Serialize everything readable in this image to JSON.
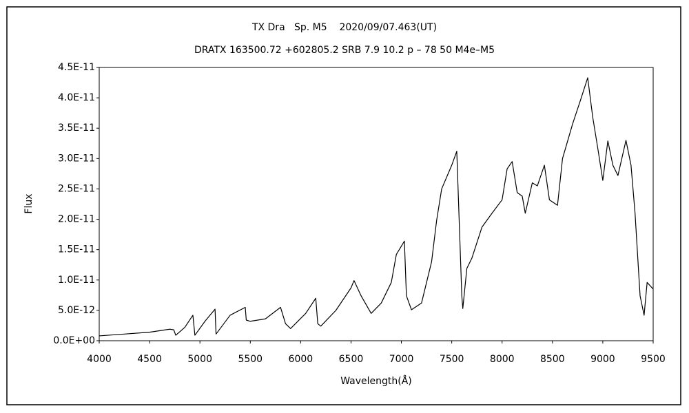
{
  "chart_data": {
    "type": "line",
    "title": "TX Dra   Sp. M5    2020/09/07.463(UT)",
    "subtitle": "DRATX 163500.72 +602805.2 SRB 7.9 10.2 p – 78 50 M4e–M5",
    "x_label": "Wavelength(Å)",
    "y_label": "Flux",
    "color": "#000000",
    "grid": false,
    "x": [
      4000,
      4250,
      4500,
      4700,
      4740,
      4760,
      4850,
      4930,
      4950,
      5050,
      5150,
      5160,
      5300,
      5450,
      5460,
      5500,
      5650,
      5800,
      5850,
      5900,
      6050,
      6150,
      6170,
      6200,
      6350,
      6500,
      6530,
      6600,
      6700,
      6800,
      6900,
      6950,
      7030,
      7050,
      7100,
      7200,
      7300,
      7350,
      7400,
      7500,
      7550,
      7600,
      7610,
      7650,
      7700,
      7800,
      7900,
      8000,
      8050,
      8100,
      8150,
      8200,
      8230,
      8300,
      8350,
      8420,
      8470,
      8550,
      8600,
      8700,
      8780,
      8850,
      8900,
      8950,
      9000,
      9050,
      9100,
      9150,
      9230,
      9280,
      9320,
      9370,
      9410,
      9440,
      9500
    ],
    "values": [
      8e-13,
      1.1e-12,
      1.4e-12,
      1.9e-12,
      1.8e-12,
      9e-13,
      2.2e-12,
      4.2e-12,
      9e-13,
      3.2e-12,
      5.2e-12,
      1.1e-12,
      4.2e-12,
      5.5e-12,
      3.4e-12,
      3.2e-12,
      3.6e-12,
      5.5e-12,
      2.8e-12,
      2e-12,
      4.5e-12,
      7e-12,
      2.8e-12,
      2.4e-12,
      5e-12,
      8.7e-12,
      9.9e-12,
      7.4e-12,
      4.5e-12,
      6.2e-12,
      9.6e-12,
      1.42e-11,
      1.64e-11,
      7.4e-12,
      5.1e-12,
      6.2e-12,
      1.3e-11,
      1.98e-11,
      2.5e-11,
      2.89e-11,
      3.12e-11,
      7.4e-12,
      5.3e-12,
      1.19e-11,
      1.36e-11,
      1.87e-11,
      2.1e-11,
      2.32e-11,
      2.83e-11,
      2.95e-11,
      2.44e-11,
      2.38e-11,
      2.1e-11,
      2.6e-11,
      2.55e-11,
      2.89e-11,
      2.32e-11,
      2.23e-11,
      3e-11,
      3.57e-11,
      3.97e-11,
      4.33e-11,
      3.68e-11,
      3.17e-11,
      2.64e-11,
      3.29e-11,
      2.89e-11,
      2.72e-11,
      3.3e-11,
      2.89e-11,
      2.1e-11,
      7.4e-12,
      4.2e-12,
      9.6e-12,
      8.5e-12
    ],
    "xlim": [
      4000,
      9500
    ],
    "xticks": [
      4000,
      4500,
      5000,
      5500,
      6000,
      6500,
      7000,
      7500,
      8000,
      8500,
      9000,
      9500
    ],
    "ylim": [
      0,
      4.5e-11
    ],
    "yticks": [
      {
        "value": 0,
        "label": "0.0E+00"
      },
      {
        "value": 5e-12,
        "label": "5.0E-12"
      },
      {
        "value": 1e-11,
        "label": "1.0E-11"
      },
      {
        "value": 1.5e-11,
        "label": "1.5E-11"
      },
      {
        "value": 2e-11,
        "label": "2.0E-11"
      },
      {
        "value": 2.5e-11,
        "label": "2.5E-11"
      },
      {
        "value": 3e-11,
        "label": "3.0E-11"
      },
      {
        "value": 3.5e-11,
        "label": "3.5E-11"
      },
      {
        "value": 4e-11,
        "label": "4.0E-11"
      },
      {
        "value": 4.5e-11,
        "label": "4.5E-11"
      }
    ]
  }
}
